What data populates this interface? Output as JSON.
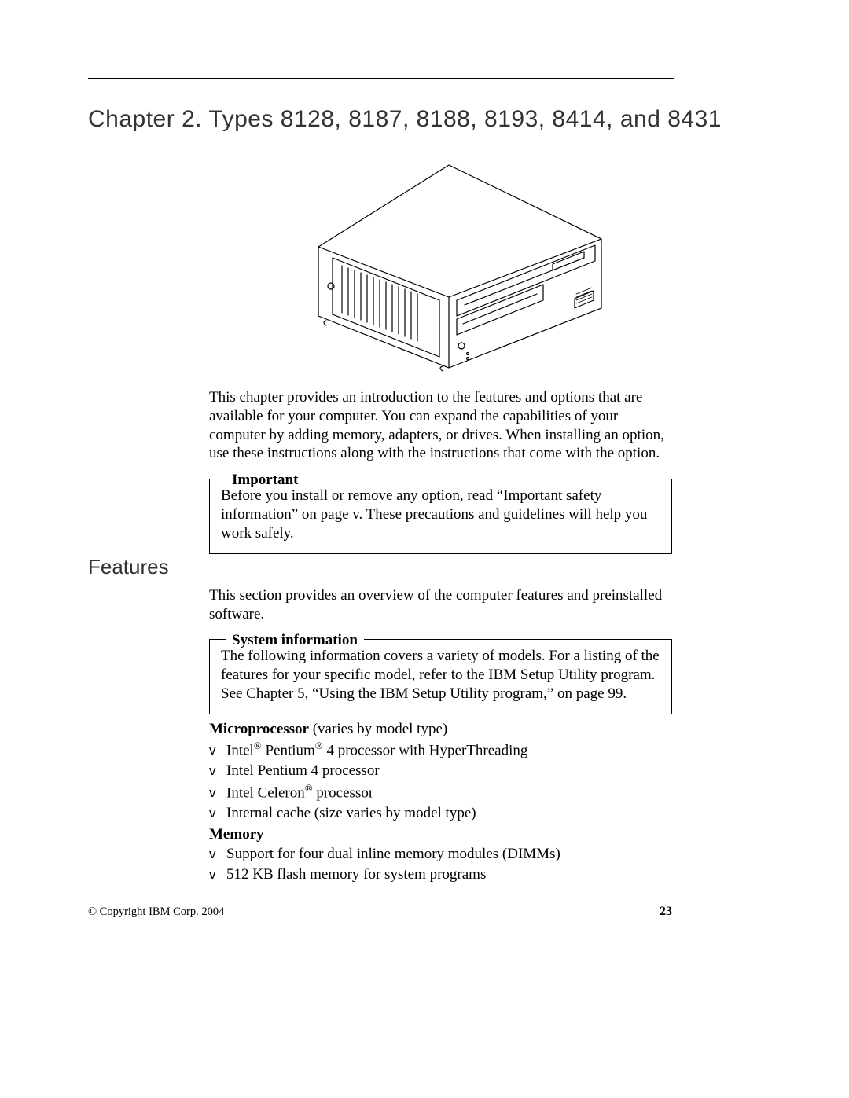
{
  "chapter": {
    "title_prefix": "Chapter",
    "number": "2.",
    "types_label": "Types",
    "types": "8128, 8187, 8188, 8193, 8414, and 8431"
  },
  "intro_paragraph": "This chapter provides an introduction to the features and options that are available for your computer. You can expand the capabilities of your computer by adding memory, adapters, or drives. When installing an option, use these instructions along with the instructions that come with the option.",
  "callout_important": {
    "legend": "Important",
    "body": "Before you install or remove any option, read “Important safety information” on page v. These precautions and guidelines will help you work safely."
  },
  "features": {
    "heading": "Features",
    "intro": "This section provides an overview of the computer features and preinstalled software."
  },
  "callout_sysinfo": {
    "legend": "System information",
    "body": "The following information covers a variety of models. For a listing of the features for your specific model, refer to the IBM Setup Utility program. See Chapter 5, “Using the IBM Setup Utility program,” on page 99."
  },
  "microprocessor": {
    "label": "Microprocessor",
    "qualifier": "(varies by model type)",
    "items": [
      {
        "pre": "Intel",
        "reg1": true,
        "mid": " Pentium",
        "reg2": true,
        "post": " 4 processor with HyperThreading"
      },
      {
        "text": "Intel Pentium 4 processor"
      },
      {
        "pre": "Intel Celeron",
        "reg1": true,
        "post": " processor"
      },
      {
        "text": "Internal cache (size varies by model type)"
      }
    ]
  },
  "memory": {
    "label": "Memory",
    "items": [
      "Support for four dual inline memory modules (DIMMs)",
      "512 KB flash memory for system programs"
    ]
  },
  "footer": {
    "copyright": "© Copyright IBM Corp. 2004",
    "page": "23"
  },
  "colors": {
    "ink": "#000000",
    "heading_gray": "#333333",
    "background": "#ffffff"
  },
  "bullet_glyph": "v"
}
